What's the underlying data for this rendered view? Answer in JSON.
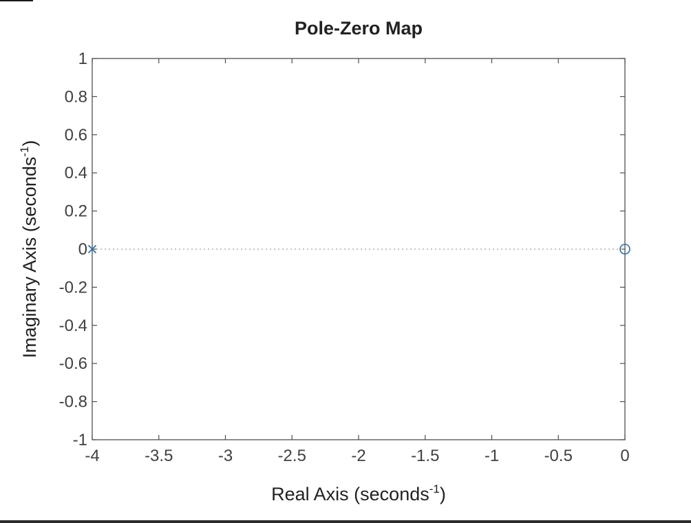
{
  "chart_data": {
    "type": "scatter",
    "title": "Pole-Zero Map",
    "xlabel": {
      "text": "Real  Axis  (seconds",
      "sup": "-1",
      "close": ")"
    },
    "ylabel": {
      "text": "Imaginary  Axis  (seconds",
      "sup": "-1",
      "close": ")"
    },
    "xlim": [
      -4,
      0
    ],
    "ylim": [
      -1,
      1
    ],
    "xticks": [
      -4,
      -3.5,
      -3,
      -2.5,
      -2,
      -1.5,
      -1,
      -0.5,
      0
    ],
    "xtick_labels": [
      "-4",
      "-3.5",
      "-3",
      "-2.5",
      "-2",
      "-1.5",
      "-1",
      "-0.5",
      "0"
    ],
    "yticks": [
      1,
      0.8,
      0.6,
      0.4,
      0.2,
      0,
      -0.2,
      -0.4,
      -0.6,
      -0.8,
      -1
    ],
    "ytick_labels": [
      "1",
      "0.8",
      "0.6",
      "0.4",
      "0.2",
      "0",
      "-0.2",
      "-0.4",
      "-0.6",
      "-0.8",
      "-1"
    ],
    "grid": false,
    "reference_line_y": 0,
    "poles": [
      {
        "re": -4,
        "im": 0
      }
    ],
    "zeros": [
      {
        "re": 0,
        "im": 0
      }
    ],
    "colors": {
      "marker": "#2f6fa7",
      "axes": "#4d4d4d",
      "reference": "#b0b0b0"
    }
  }
}
